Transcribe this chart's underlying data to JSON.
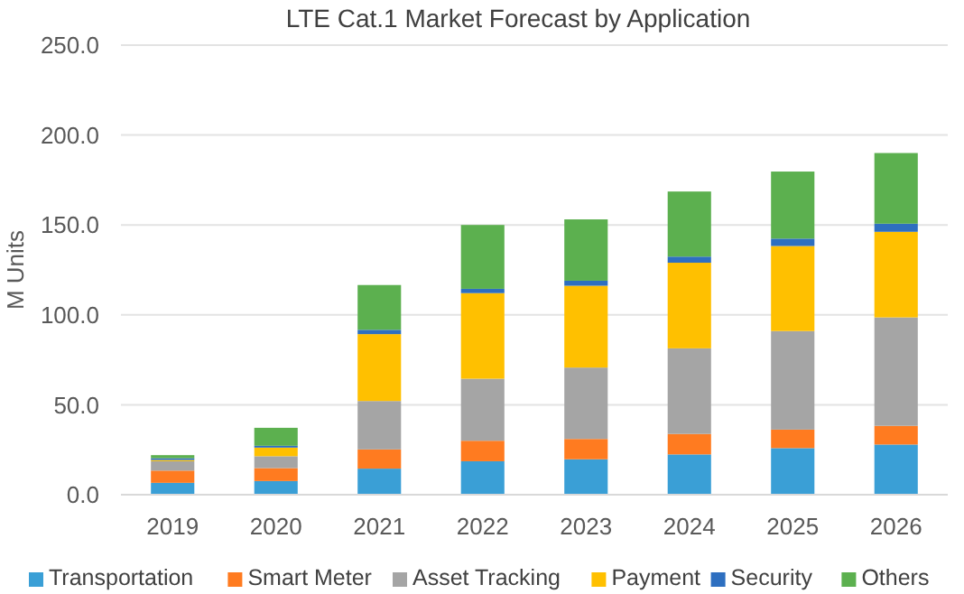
{
  "chart_data": {
    "type": "bar",
    "title": "LTE Cat.1 Market Forecast by Application",
    "ylabel": "M Units",
    "stacked": true,
    "grid": "y",
    "legend": "bottom",
    "categories": [
      "2019",
      "2020",
      "2021",
      "2022",
      "2023",
      "2024",
      "2025",
      "2026"
    ],
    "ylim": [
      0,
      250
    ],
    "yticks": [
      {
        "value": 0,
        "label": "0.0"
      },
      {
        "value": 50,
        "label": "50.0"
      },
      {
        "value": 100,
        "label": "100.0"
      },
      {
        "value": 150,
        "label": "150.0"
      },
      {
        "value": 200,
        "label": "200.0"
      },
      {
        "value": 250,
        "label": "250.0"
      }
    ],
    "series": [
      {
        "name": "Transportation",
        "color": "#3a9fd6",
        "values": [
          6.6,
          7.6,
          14.5,
          18.6,
          19.7,
          22.4,
          25.9,
          27.9
        ]
      },
      {
        "name": "Smart Meter",
        "color": "#ff7b20",
        "values": [
          6.8,
          7.2,
          10.7,
          11.4,
          11.3,
          11.4,
          10.3,
          10.4
        ]
      },
      {
        "name": "Asset Tracking",
        "color": "#a5a5a5",
        "values": [
          5.2,
          6.6,
          26.9,
          34.5,
          39.7,
          47.6,
          54.8,
          60.3
        ]
      },
      {
        "name": "Payment",
        "color": "#ffc000",
        "values": [
          0.7,
          4.8,
          37.2,
          47.6,
          45.5,
          47.6,
          47.3,
          47.6
        ]
      },
      {
        "name": "Security",
        "color": "#2e6fc0",
        "values": [
          1,
          1,
          2.4,
          2.4,
          2.8,
          3.4,
          4.1,
          4.5
        ]
      },
      {
        "name": "Others",
        "color": "#5cb04f",
        "values": [
          1.7,
          10,
          24.9,
          35.5,
          34.1,
          36.2,
          37.3,
          39.3
        ]
      }
    ]
  }
}
